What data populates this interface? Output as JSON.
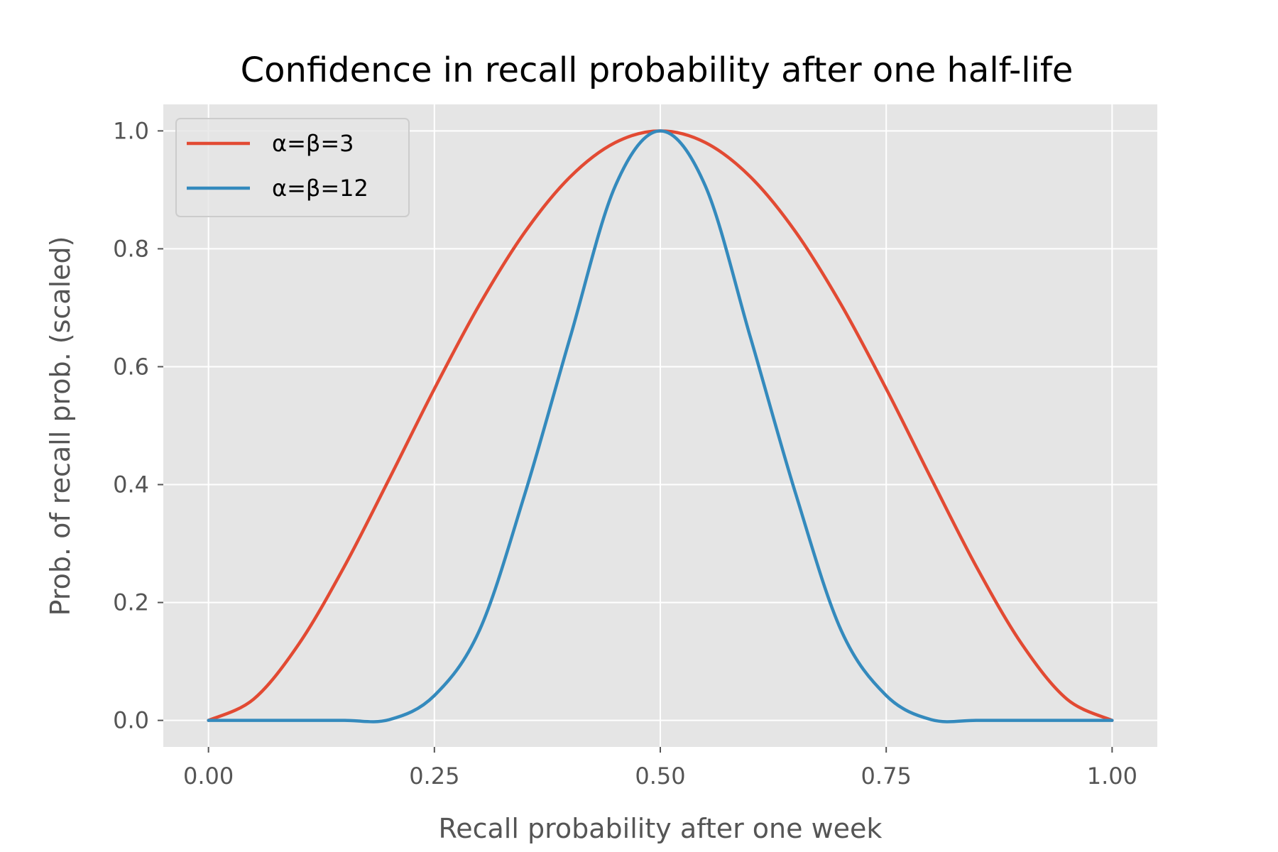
{
  "chart_data": {
    "type": "line",
    "title": "Confidence in recall probability after one half-life",
    "xlabel": "Recall probability after one week",
    "ylabel": "Prob. of recall prob. (scaled)",
    "xlim": [
      -0.05,
      1.05
    ],
    "ylim": [
      -0.045,
      1.045
    ],
    "x_ticks": [
      0.0,
      0.25,
      0.5,
      0.75,
      1.0
    ],
    "x_tick_labels": [
      "0.00",
      "0.25",
      "0.50",
      "0.75",
      "1.00"
    ],
    "y_ticks": [
      0.0,
      0.2,
      0.4,
      0.6,
      0.8,
      1.0
    ],
    "y_tick_labels": [
      "0.0",
      "0.2",
      "0.4",
      "0.6",
      "0.8",
      "1.0"
    ],
    "grid": true,
    "legend_position": "top-left",
    "x": [
      0.0,
      0.05,
      0.1,
      0.15,
      0.2,
      0.25,
      0.3,
      0.35,
      0.4,
      0.45,
      0.5,
      0.55,
      0.6,
      0.65,
      0.7,
      0.75,
      0.8,
      0.85,
      0.9,
      0.95,
      1.0
    ],
    "series": [
      {
        "name": "α=β=3",
        "color": "#E24A33",
        "values": [
          0.0,
          0.0361,
          0.1296,
          0.2601,
          0.4096,
          0.5625,
          0.7056,
          0.8281,
          0.9216,
          0.9801,
          1.0,
          0.9801,
          0.9216,
          0.8281,
          0.7056,
          0.5625,
          0.4096,
          0.2601,
          0.1296,
          0.0361,
          0.0
        ]
      },
      {
        "name": "α=β=12",
        "color": "#348ABD",
        "values": [
          0.0,
          0.0,
          0.0,
          5e-05,
          0.0012,
          0.0422,
          0.1532,
          0.3836,
          0.6484,
          0.906,
          1.0,
          0.906,
          0.6484,
          0.3836,
          0.1532,
          0.0422,
          0.0012,
          5e-05,
          0.0,
          0.0,
          0.0
        ]
      }
    ]
  },
  "axes_style": {
    "background": "#E5E5E5",
    "grid_color": "#FFFFFF",
    "tick_color": "#555555"
  }
}
